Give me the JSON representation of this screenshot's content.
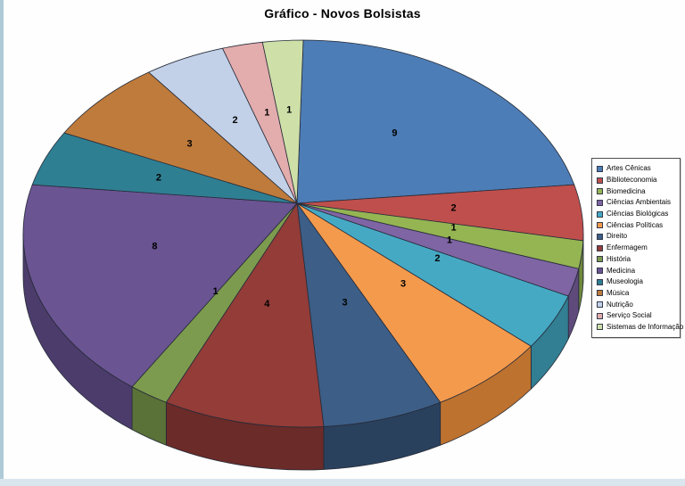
{
  "title": "Gráfico - Novos Bolsistas",
  "frame": {
    "left_border_color": "#aecad7",
    "bottom_border_color": "#d9e6ed",
    "background_color": "#fdfefd"
  },
  "chart_data": {
    "type": "pie",
    "title": "Gráfico - Novos Bolsistas",
    "is_3d": true,
    "start_angle_deg": 0,
    "direction": "clockwise",
    "values_total": 43,
    "legend_position": "right",
    "grid": false,
    "outline_color": "#262b38",
    "label_color": "#000000",
    "series": [
      {
        "label": "Artes Cênicas",
        "value": 9,
        "color": "#4d7db6",
        "side_color": "#385e8c"
      },
      {
        "label": "Biblioteconomia",
        "value": 2,
        "color": "#bf4f4c",
        "side_color": "#8e3a38"
      },
      {
        "label": "Biomedicina",
        "value": 1,
        "color": "#95b553",
        "side_color": "#6f883c"
      },
      {
        "label": "Ciências Ambientais",
        "value": 1,
        "color": "#7f65a4",
        "side_color": "#5e4a7b"
      },
      {
        "label": "Ciências Biológicas",
        "value": 2,
        "color": "#45a9c4",
        "side_color": "#327e93"
      },
      {
        "label": "Ciências Políticas",
        "value": 3,
        "color": "#f39a4d",
        "side_color": "#bd722f"
      },
      {
        "label": "Direito",
        "value": 3,
        "color": "#3d5e86",
        "side_color": "#2a415e"
      },
      {
        "label": "Enfermagem",
        "value": 4,
        "color": "#933c38",
        "side_color": "#6b2b28"
      },
      {
        "label": "História",
        "value": 1,
        "color": "#7d9b4e",
        "side_color": "#5a7138"
      },
      {
        "label": "Medicina",
        "value": 8,
        "color": "#6a5492",
        "side_color": "#4c3c6c"
      },
      {
        "label": "Museologia",
        "value": 2,
        "color": "#2f7f93",
        "side_color": "#215d6c"
      },
      {
        "label": "Música",
        "value": 3,
        "color": "#bf7b3b",
        "side_color": "#8d5927"
      },
      {
        "label": "Nutrição",
        "value": 2,
        "color": "#c2d1e8",
        "side_color": "#8fa2c0"
      },
      {
        "label": "Serviço Social",
        "value": 1,
        "color": "#e3acad",
        "side_color": "#b38182"
      },
      {
        "label": "Sistemas de Informação",
        "value": 1,
        "color": "#cee0a8",
        "side_color": "#9cb273"
      }
    ]
  }
}
